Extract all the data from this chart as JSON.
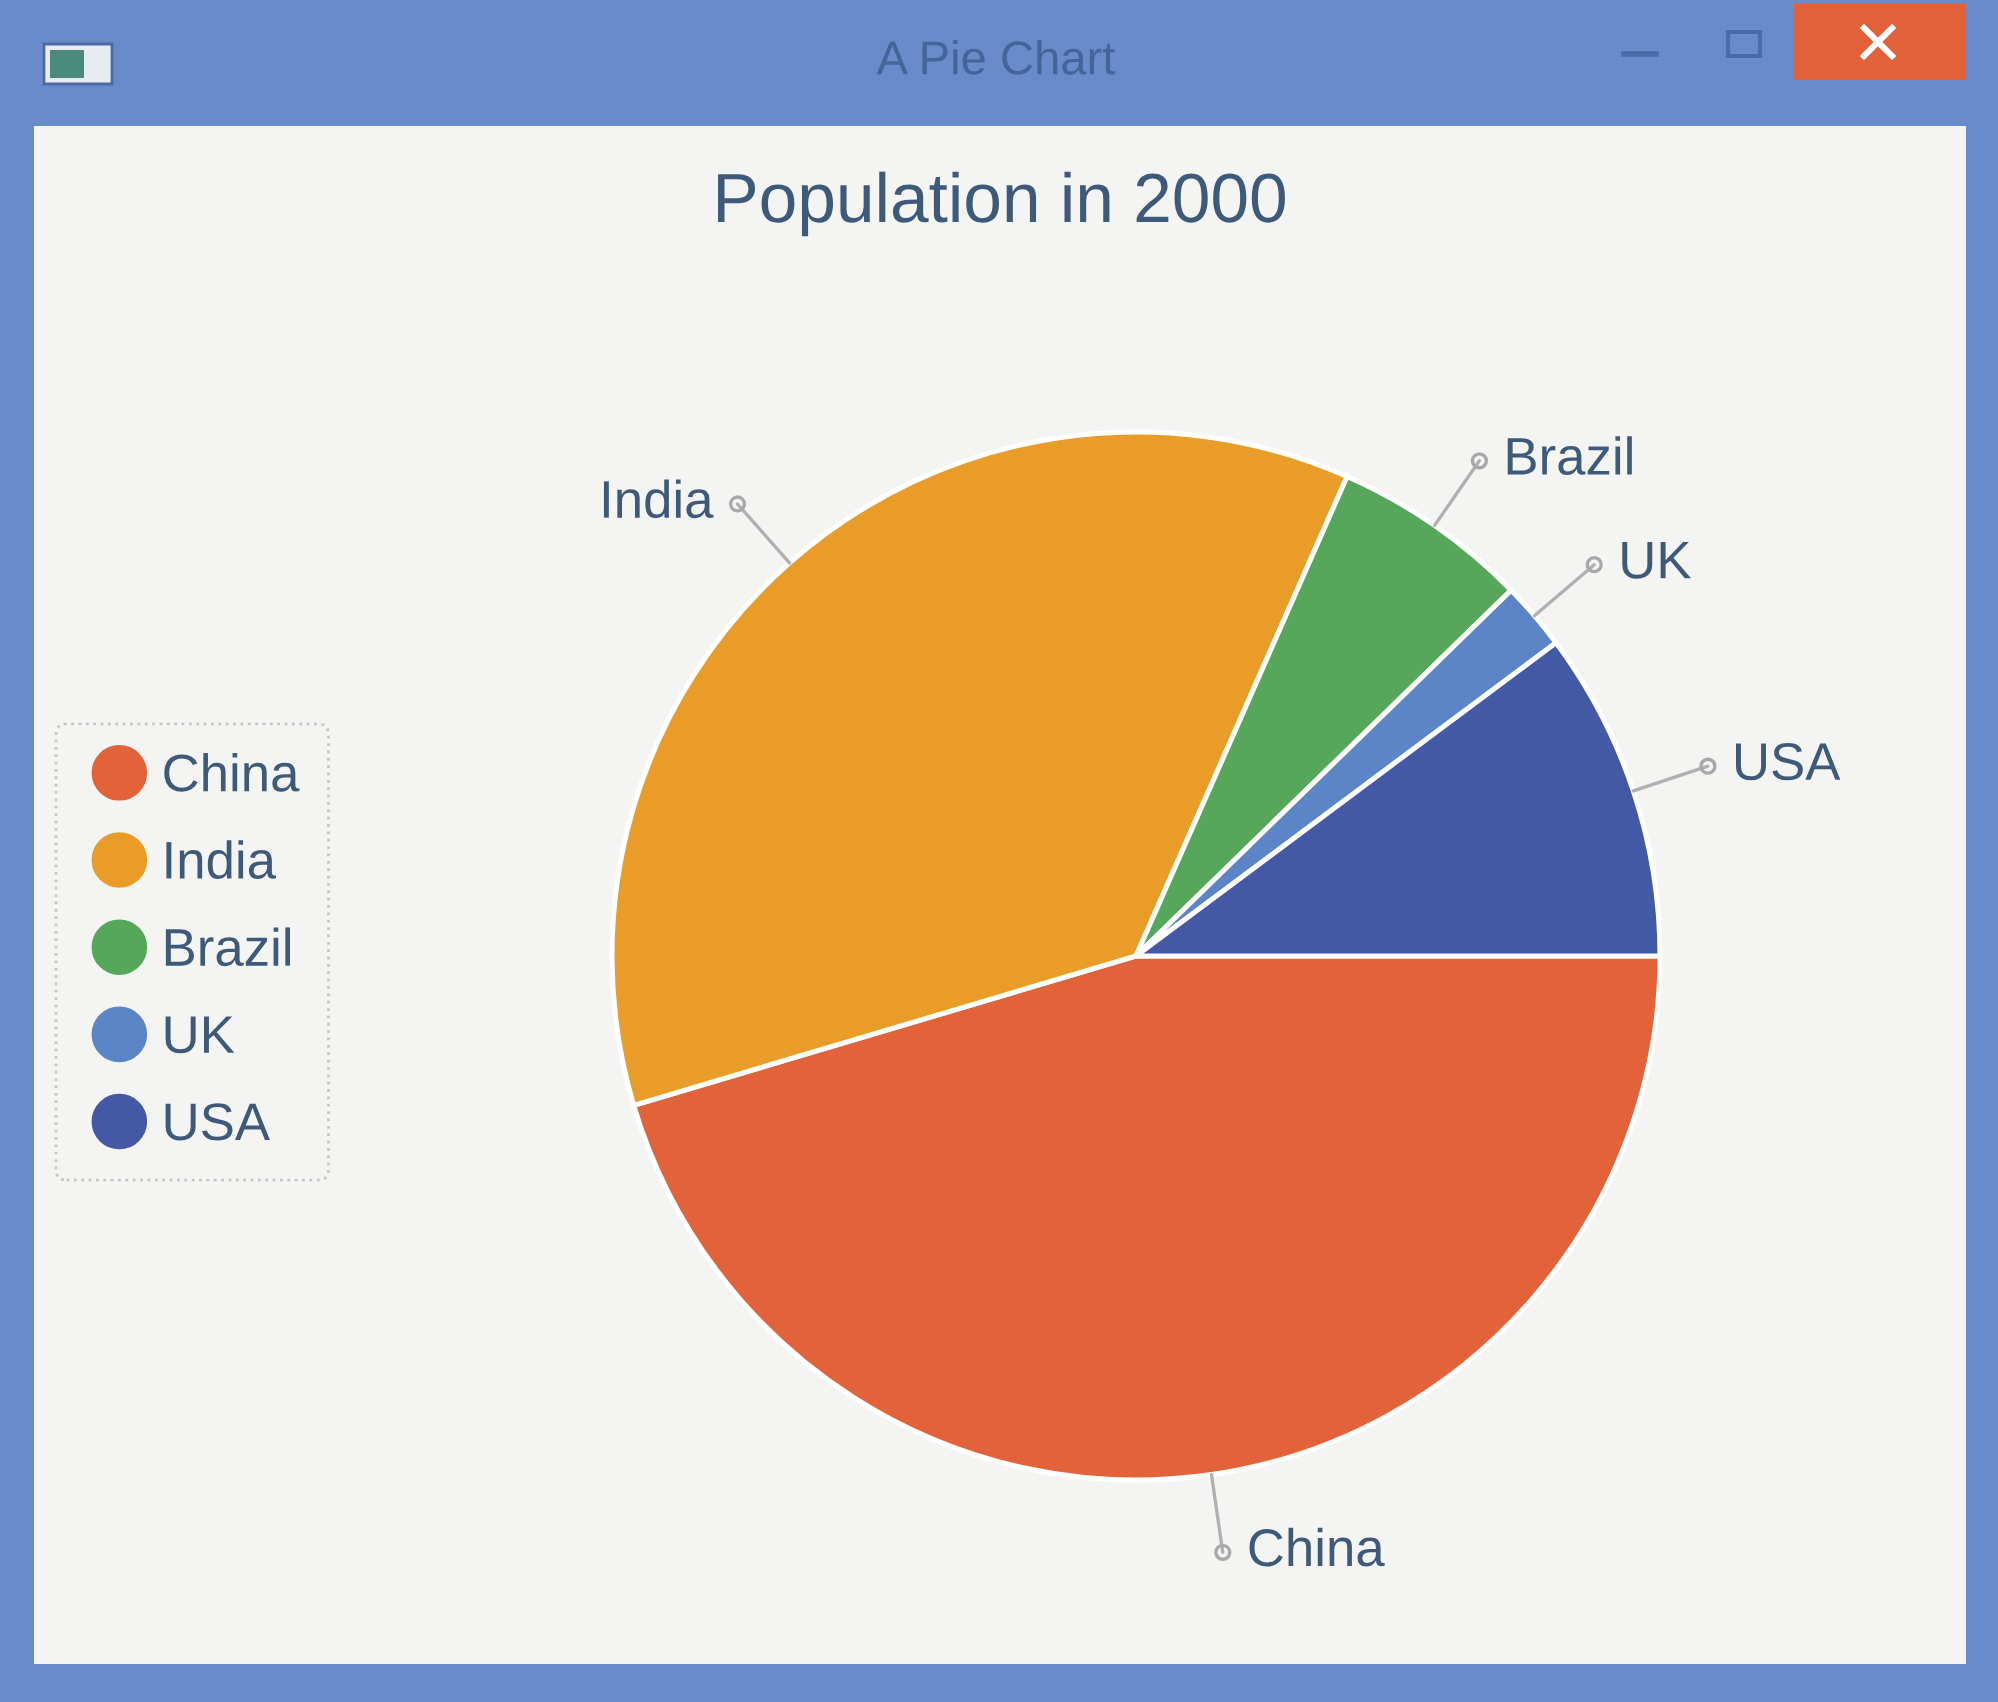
{
  "chart_data": {
    "type": "pie",
    "title": "Population in 2000",
    "categories": [
      "China",
      "India",
      "Brazil",
      "UK",
      "USA"
    ],
    "values": [
      45.4,
      36.2,
      6.1,
      2.1,
      10.2
    ],
    "colors": [
      "#e2623a",
      "#e99d28",
      "#56a75a",
      "#5b85c7",
      "#4459a6"
    ],
    "legend": "left",
    "annotations": [
      "A Pie Chart"
    ]
  }
}
